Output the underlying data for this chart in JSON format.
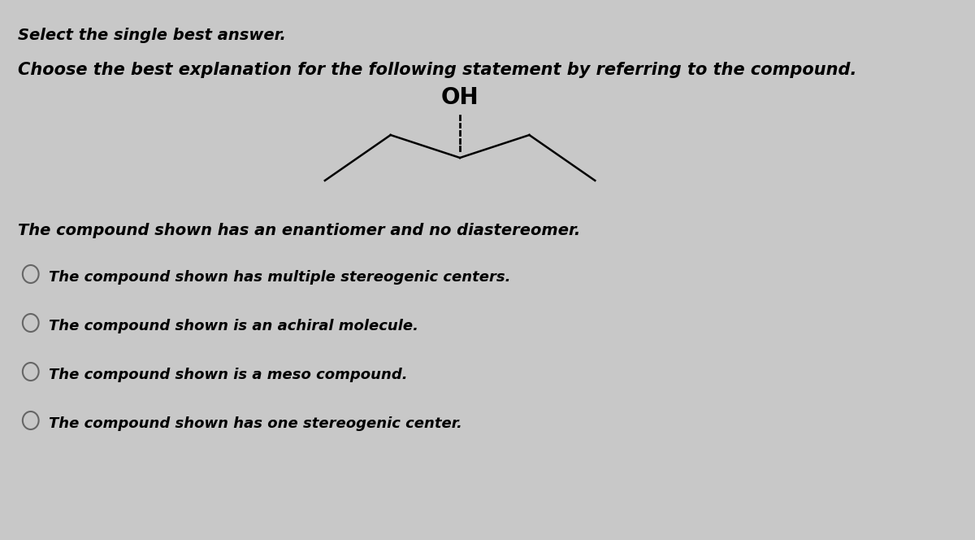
{
  "background_color": "#c8c8c8",
  "title_line1": "Select the single best answer.",
  "title_line2": "Choose the best explanation for the following statement by referring to the compound.",
  "statement": "The compound shown has an enantiomer and no diastereomer.",
  "options": [
    "The compound shown has multiple stereogenic centers.",
    "The compound shown is an achiral molecule.",
    "The compound shown is a meso compound.",
    "The compound shown has one stereogenic center."
  ],
  "oh_label": "OH",
  "text_color": "#000000",
  "font_size_header1": 14,
  "font_size_header2": 15,
  "font_size_statement": 14,
  "font_size_options": 13,
  "font_size_oh": 20
}
